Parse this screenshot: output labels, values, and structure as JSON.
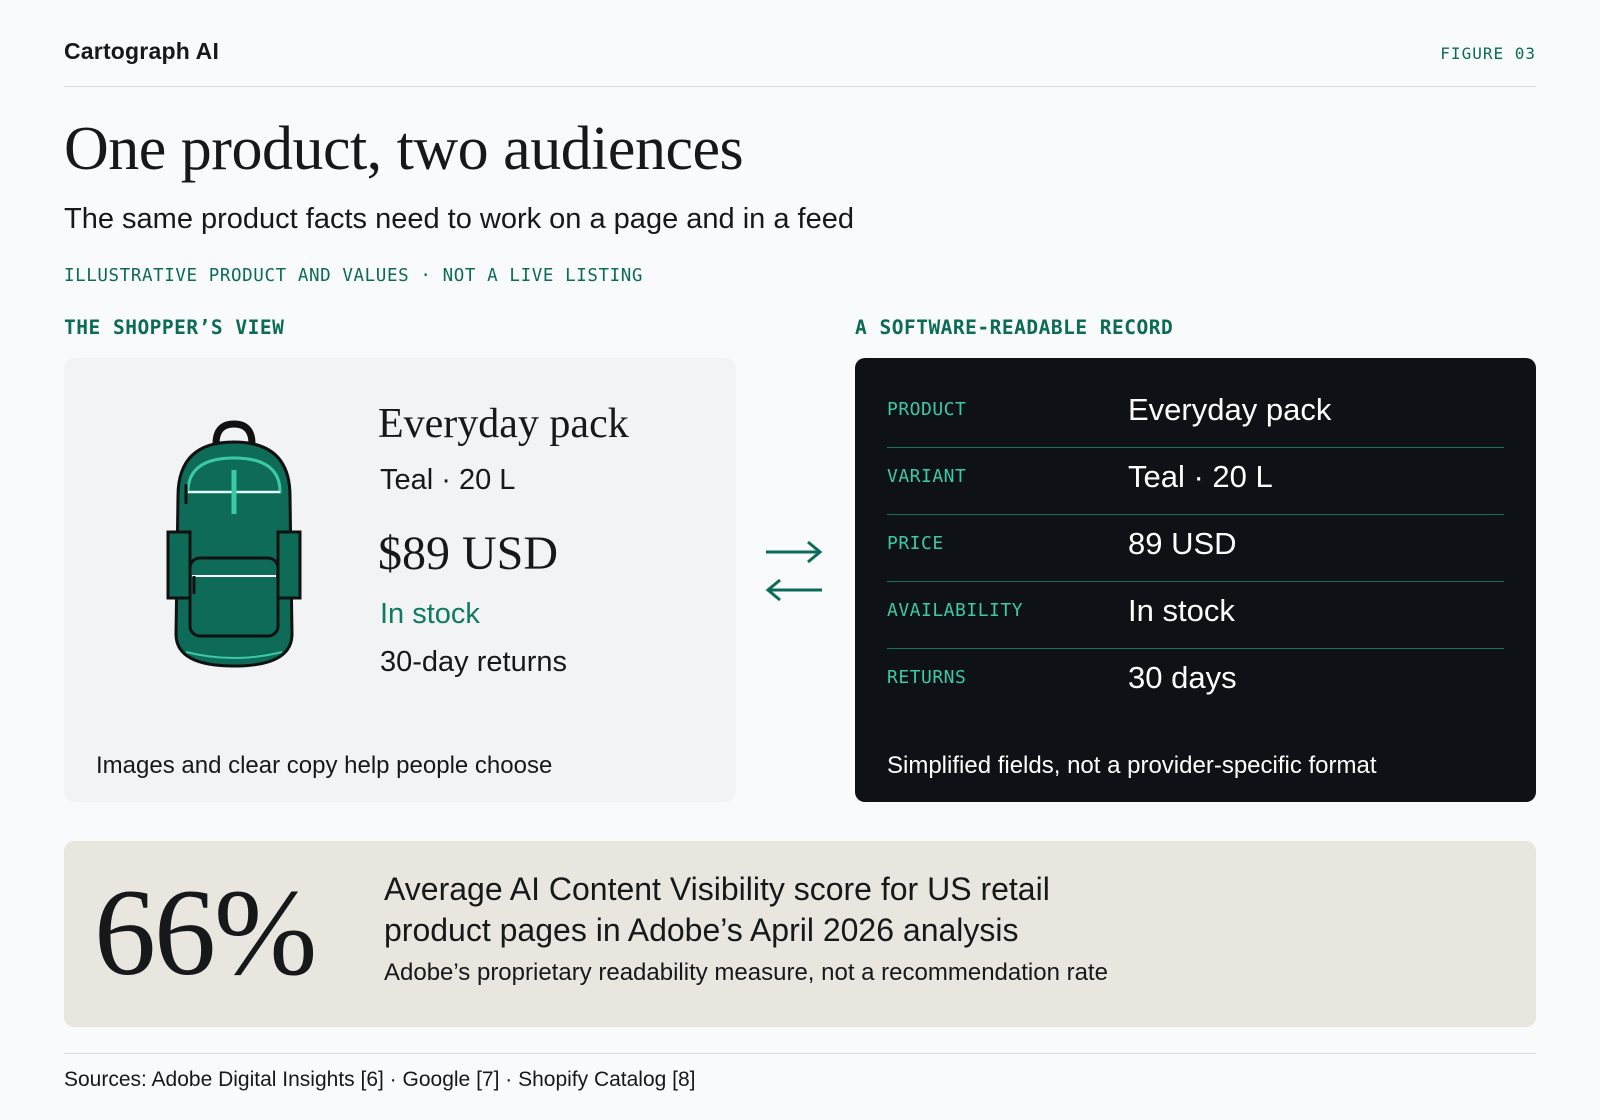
{
  "header": {
    "brand": "Cartograph AI",
    "figure_label": "FIGURE 03"
  },
  "title": "One product, two audiences",
  "subtitle": "The same product facts need to work on a page and in a feed",
  "disclaimer": "ILLUSTRATIVE PRODUCT AND VALUES · NOT A LIVE LISTING",
  "shopper": {
    "label": "THE SHOPPER’S VIEW",
    "name": "Everyday pack",
    "variant": "Teal · 20 L",
    "price": "$89 USD",
    "stock": "In stock",
    "returns": "30-day returns",
    "caption": "Images and clear copy help people choose",
    "image_icon": "backpack-icon",
    "product_color": "#0d6b58",
    "stock_color": "#0e7a62"
  },
  "arrows_icon": "bidirectional-arrows-icon",
  "record": {
    "label": "A SOFTWARE-READABLE RECORD",
    "rows": [
      {
        "key": "PRODUCT",
        "value": "Everyday pack"
      },
      {
        "key": "VARIANT",
        "value": "Teal · 20 L"
      },
      {
        "key": "PRICE",
        "value": "89 USD"
      },
      {
        "key": "AVAILABILITY",
        "value": "In stock"
      },
      {
        "key": "RETURNS",
        "value": "30 days"
      }
    ],
    "caption": "Simplified fields, not a provider-specific format",
    "background": "#0e1217",
    "key_color": "#3cc9a3"
  },
  "stat": {
    "value": "66%",
    "headline": "Average AI Content Visibility score for US retail product pages in Adobe’s April 2026 analysis",
    "note": "Adobe’s proprietary readability measure, not a recommendation rate"
  },
  "sources": "Sources: Adobe Digital Insights [6] · Google [7] · Shopify Catalog [8]",
  "colors": {
    "accent": "#0b6b57",
    "background": "#f9fafb",
    "stat_background": "#e8e6df"
  }
}
